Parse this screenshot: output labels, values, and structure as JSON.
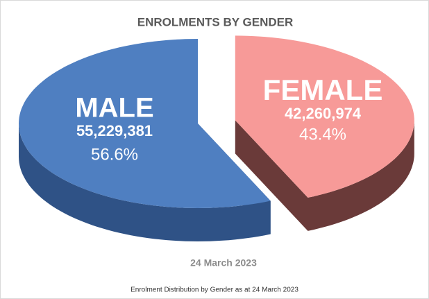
{
  "chart_data": {
    "type": "pie3d",
    "title": "ENROLMENTS BY GENDER",
    "categories": [
      "MALE",
      "FEMALE"
    ],
    "values": [
      55229381,
      42260974
    ],
    "value_labels": [
      "55,229,381",
      "42,260,974"
    ],
    "percentages": [
      56.6,
      43.4
    ],
    "percentage_labels": [
      "56.6%",
      "43.4%"
    ],
    "colors": [
      "#4f7fc1",
      "#f79a98"
    ],
    "side_colors": [
      "#2f5286",
      "#6a3a39"
    ],
    "date": "24 March 2023",
    "caption": "Enrolment Distribution by Gender as at 24 March 2023"
  }
}
